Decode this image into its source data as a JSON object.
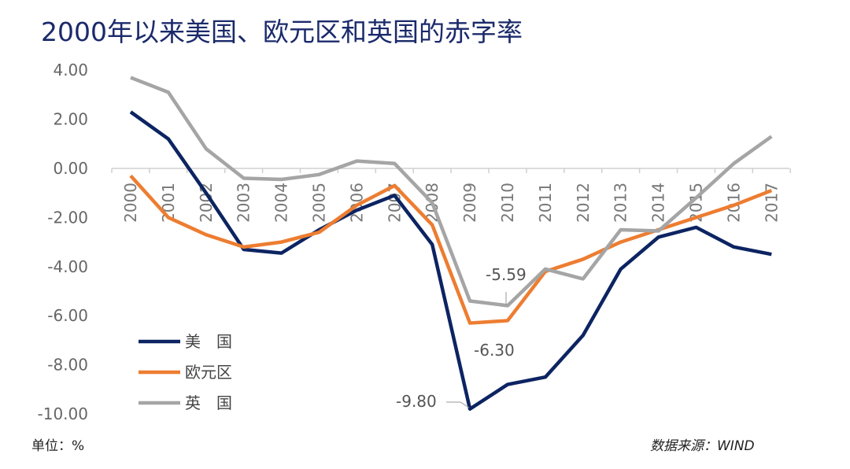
{
  "title": "2000年以来美国、欧元区和英国的赤字率",
  "unit_label": "单位：%",
  "source_label": "数据来源：WIND",
  "chart_data": {
    "type": "line",
    "title": "2000年以来美国、欧元区和英国的赤字率",
    "xlabel": "",
    "ylabel": "单位：%",
    "ylim": [
      -10,
      4
    ],
    "yticks": [
      "4.00",
      "2.00",
      "0.00",
      "-2.00",
      "-4.00",
      "-6.00",
      "-8.00",
      "-10.00"
    ],
    "ytick_values": [
      4,
      2,
      0,
      -2,
      -4,
      -6,
      -8,
      -10
    ],
    "categories": [
      "2000",
      "2001",
      "2002",
      "2003",
      "2004",
      "2005",
      "2006",
      "2007",
      "2008",
      "2009",
      "2010",
      "2011",
      "2012",
      "2013",
      "2014",
      "2015",
      "2016",
      "2017"
    ],
    "grid": false,
    "legend_position": "bottom-left",
    "series": [
      {
        "name": "美　国",
        "color": "#0d2462",
        "values": [
          2.3,
          1.2,
          -1.0,
          -3.3,
          -3.45,
          -2.5,
          -1.7,
          -1.1,
          -3.1,
          -9.8,
          -8.8,
          -8.5,
          -6.8,
          -4.1,
          -2.8,
          -2.4,
          -3.2,
          -3.5
        ]
      },
      {
        "name": "欧元区",
        "color": "#ed7d31",
        "values": [
          -0.3,
          -2.0,
          -2.7,
          -3.2,
          -3.0,
          -2.6,
          -1.5,
          -0.7,
          -2.3,
          -6.3,
          -6.2,
          -4.2,
          -3.7,
          -3.0,
          -2.5,
          -2.0,
          -1.5,
          -0.9
        ]
      },
      {
        "name": "英　国",
        "color": "#a5a5a5",
        "values": [
          3.7,
          3.1,
          0.8,
          -0.4,
          -0.45,
          -0.25,
          0.3,
          0.2,
          -1.4,
          -5.4,
          -5.59,
          -4.1,
          -4.5,
          -2.5,
          -2.55,
          -1.2,
          0.2,
          1.3
        ]
      }
    ],
    "annotations": [
      {
        "text": "-5.59",
        "series": "英　国",
        "category": "2010"
      },
      {
        "text": "-6.30",
        "series": "欧元区",
        "category": "2009"
      },
      {
        "text": "-9.80",
        "series": "美　国",
        "category": "2009"
      }
    ]
  }
}
